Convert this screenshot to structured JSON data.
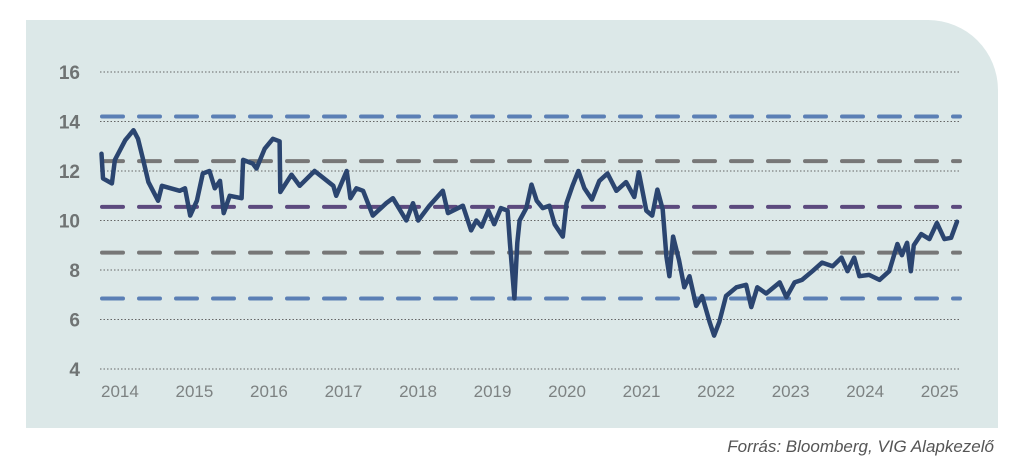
{
  "chart_data": {
    "type": "line",
    "title": "",
    "xlabel": "",
    "ylabel": "",
    "xlim": [
      2014,
      2025.54
    ],
    "ylim": [
      4,
      16
    ],
    "yticks": [
      4,
      6,
      8,
      10,
      12,
      14,
      16
    ],
    "xtick_labels": [
      "2014",
      "2015",
      "2016",
      "2017",
      "2018",
      "2019",
      "2020",
      "2021",
      "2022",
      "2023",
      "2024",
      "2025"
    ],
    "grid": "horizontal dotted",
    "legend": "none",
    "colors": {
      "series": "#2b4570",
      "band_outer": "#5b7fb5",
      "band_inner": "#777777",
      "mean": "#5c4a7e",
      "background": "#dce8e8"
    },
    "reference_lines": [
      {
        "value": 14.2,
        "style": "dashed",
        "color": "#5b7fb5"
      },
      {
        "value": 12.4,
        "style": "dashed",
        "color": "#777777"
      },
      {
        "value": 10.55,
        "style": "dashed",
        "color": "#5c4a7e"
      },
      {
        "value": 8.7,
        "style": "dashed",
        "color": "#777777"
      },
      {
        "value": 6.85,
        "style": "dashed",
        "color": "#5b7fb5"
      }
    ],
    "series": [
      {
        "x": [
          2014.02,
          2014.04,
          2014.16,
          2014.2,
          2014.34,
          2014.45,
          2014.51,
          2014.58,
          2014.65,
          2014.78,
          2014.83,
          2015.07,
          2015.14,
          2015.21,
          2015.3,
          2015.38,
          2015.47,
          2015.54,
          2015.61,
          2015.66,
          2015.74,
          2015.9,
          2015.92,
          2016.05,
          2016.1,
          2016.21,
          2016.32,
          2016.41,
          2016.42,
          2016.57,
          2016.68,
          2016.88,
          2017.13,
          2017.17,
          2017.31,
          2017.36,
          2017.44,
          2017.53,
          2017.66,
          2017.84,
          2017.93,
          2018.11,
          2018.2,
          2018.27,
          2018.42,
          2018.6,
          2018.67,
          2018.87,
          2018.98,
          2019.05,
          2019.12,
          2019.21,
          2019.29,
          2019.38,
          2019.47,
          2019.5,
          2019.56,
          2019.6,
          2019.63,
          2019.72,
          2019.79,
          2019.86,
          2019.94,
          2020.03,
          2020.1,
          2020.21,
          2020.26,
          2020.34,
          2020.42,
          2020.5,
          2020.6,
          2020.7,
          2020.81,
          2020.93,
          2021.06,
          2021.17,
          2021.23,
          2021.33,
          2021.41,
          2021.48,
          2021.55,
          2021.6,
          2021.64,
          2021.69,
          2021.77,
          2021.84,
          2021.91,
          2022.0,
          2022.08,
          2022.18,
          2022.24,
          2022.31,
          2022.4,
          2022.54,
          2022.67,
          2022.74,
          2022.82,
          2022.94,
          2023.12,
          2023.21,
          2023.32,
          2023.42,
          2023.56,
          2023.69,
          2023.83,
          2023.95,
          2024.03,
          2024.12,
          2024.19,
          2024.32,
          2024.46,
          2024.59,
          2024.7,
          2024.76,
          2024.83,
          2024.88,
          2024.92,
          2025.02,
          2025.13,
          2025.23,
          2025.33,
          2025.42,
          2025.5
        ],
        "values": [
          12.7,
          11.7,
          11.5,
          12.45,
          13.25,
          13.65,
          13.3,
          12.45,
          11.55,
          10.8,
          11.4,
          11.2,
          11.3,
          10.2,
          10.8,
          11.9,
          12.0,
          11.3,
          11.6,
          10.3,
          11.0,
          10.9,
          12.45,
          12.3,
          12.1,
          12.9,
          13.3,
          13.2,
          11.15,
          11.85,
          11.4,
          12.0,
          11.4,
          11.0,
          12.0,
          10.9,
          11.3,
          11.2,
          10.2,
          10.7,
          10.9,
          10.0,
          10.7,
          10.0,
          10.6,
          11.2,
          10.3,
          10.6,
          9.6,
          10.0,
          9.75,
          10.4,
          9.85,
          10.5,
          10.4,
          9.1,
          6.85,
          9.1,
          10.0,
          10.5,
          11.45,
          10.8,
          10.5,
          10.6,
          9.85,
          9.35,
          10.7,
          11.4,
          12.0,
          11.3,
          10.85,
          11.6,
          11.9,
          11.2,
          11.55,
          10.95,
          11.95,
          10.4,
          10.2,
          11.25,
          10.45,
          8.55,
          7.75,
          9.35,
          8.4,
          7.3,
          7.75,
          6.55,
          6.95,
          5.9,
          5.35,
          5.9,
          6.95,
          7.3,
          7.4,
          6.5,
          7.3,
          7.05,
          7.5,
          6.9,
          7.5,
          7.6,
          7.95,
          8.3,
          8.15,
          8.5,
          7.95,
          8.5,
          7.75,
          7.8,
          7.6,
          7.95,
          9.05,
          8.6,
          9.1,
          7.95,
          9.0,
          9.45,
          9.25,
          9.9,
          9.25,
          9.3,
          9.95
        ]
      }
    ]
  },
  "source": "Forrás: Bloomberg, VIG Alapkezelő"
}
